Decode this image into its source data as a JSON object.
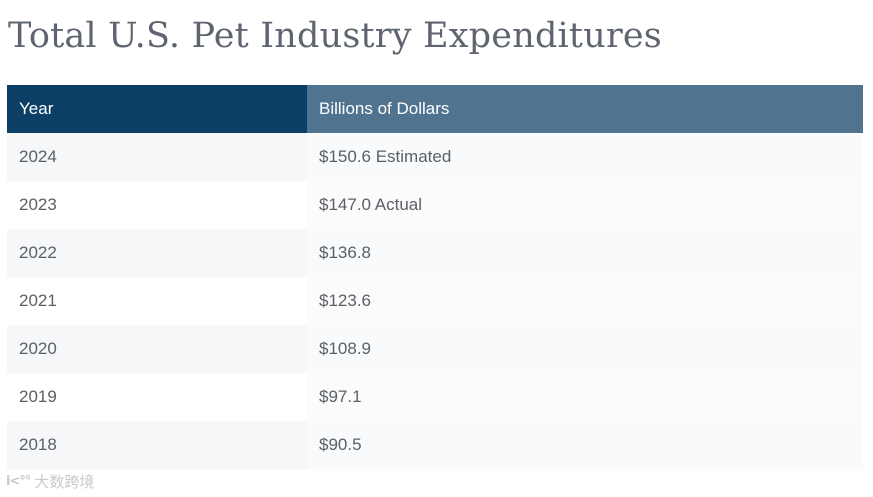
{
  "title": "Total U.S. Pet Industry Expenditures",
  "header": {
    "col_year": "Year",
    "col_value": "Billions of Dollars"
  },
  "rows": [
    {
      "year": "2024",
      "value": "$150.6 Estimated"
    },
    {
      "year": "2023",
      "value": "$147.0 Actual"
    },
    {
      "year": "2022",
      "value": "$136.8"
    },
    {
      "year": "2021",
      "value": "$123.6"
    },
    {
      "year": "2020",
      "value": "$108.9"
    },
    {
      "year": "2019",
      "value": "$97.1"
    },
    {
      "year": "2018",
      "value": "$90.5"
    }
  ],
  "watermark": {
    "logo": "i<°°",
    "text": "大数跨境"
  },
  "chart_data": {
    "type": "table",
    "title": "Total U.S. Pet Industry Expenditures",
    "columns": [
      "Year",
      "Billions of Dollars"
    ],
    "x": [
      2024,
      2023,
      2022,
      2021,
      2020,
      2019,
      2018
    ],
    "values": [
      150.6,
      147.0,
      136.8,
      123.6,
      108.9,
      97.1,
      90.5
    ],
    "annotations": {
      "2024": "Estimated",
      "2023": "Actual"
    },
    "ylabel": "Billions of Dollars",
    "xlabel": "Year"
  }
}
